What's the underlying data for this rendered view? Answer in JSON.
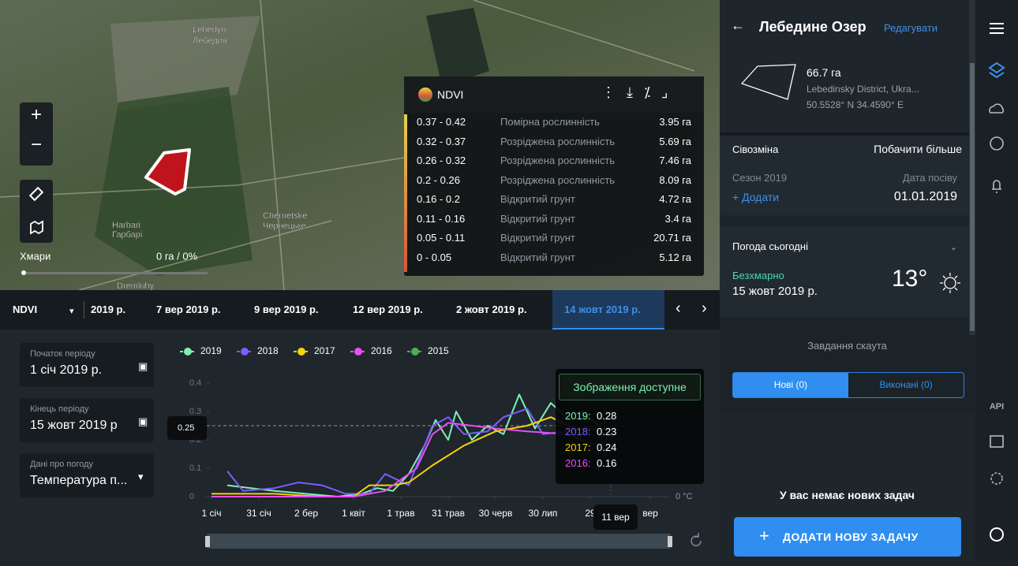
{
  "map": {
    "labels": [
      "Lebedyn",
      "Лебедин",
      "Harbari",
      "Гарбарі",
      "Chernetske",
      "Чернецьке",
      "Dremluhy"
    ],
    "clouds_label": "Хмари",
    "clouds_value": "0 га / 0%"
  },
  "ndvi_legend": {
    "title": "NDVI",
    "rows": [
      {
        "range": "0.37 - 0.42",
        "class": "Помірна рослинність",
        "area": "3.95 га"
      },
      {
        "range": "0.32 - 0.37",
        "class": "Розріджена рослинність",
        "area": "5.69 га"
      },
      {
        "range": "0.26 - 0.32",
        "class": "Розріджена рослинність",
        "area": "7.46 га"
      },
      {
        "range": "0.2 - 0.26",
        "class": "Розріджена рослинність",
        "area": "8.09 га"
      },
      {
        "range": "0.16 - 0.2",
        "class": "Відкритий грунт",
        "area": "4.72 га"
      },
      {
        "range": "0.11 - 0.16",
        "class": "Відкритий грунт",
        "area": "3.4 га"
      },
      {
        "range": "0.05 - 0.11",
        "class": "Відкритий грунт",
        "area": "20.71 га"
      },
      {
        "range": "0 - 0.05",
        "class": "Відкритий грунт",
        "area": "5.12 га"
      }
    ]
  },
  "timeline": {
    "layer": "NDVI",
    "dates": [
      "2019 р.",
      "7 вер 2019 р.",
      "9 вер 2019 р.",
      "12 вер 2019 р.",
      "2 жовт 2019 р.",
      "14 жовт 2019 р."
    ],
    "selected": 5
  },
  "filters": [
    {
      "label": "Початок періоду",
      "value": "1 січ 2019 р."
    },
    {
      "label": "Кінець періоду",
      "value": "15 жовт 2019 р"
    },
    {
      "label": "Дані про погоду",
      "value": "Температура п..."
    }
  ],
  "ndvi_chart": {
    "type": "line",
    "xlim": [
      0,
      290
    ],
    "ylim": [
      0,
      0.4
    ],
    "yticks": [
      0,
      0.1,
      0.2,
      0.3,
      0.4
    ],
    "xticks": [
      {
        "value": 0,
        "label": "1 січ"
      },
      {
        "value": 30,
        "label": "31 січ"
      },
      {
        "value": 60,
        "label": "2 бер"
      },
      {
        "value": 90,
        "label": "1 квіт"
      },
      {
        "value": 120,
        "label": "1 трав"
      },
      {
        "value": 150,
        "label": "31 трав"
      },
      {
        "value": 180,
        "label": "30 черв"
      },
      {
        "value": 210,
        "label": "30 лип"
      },
      {
        "value": 240,
        "label": "29"
      },
      {
        "value": 278,
        "label": "вер"
      }
    ],
    "y2_label": "0 °C",
    "crosshair": 0.25,
    "hover_label": "11 вер",
    "hover_x": 253,
    "series": [
      {
        "name": "2019",
        "color": "#7ff0b4",
        "x": [
          10,
          25,
          40,
          60,
          80,
          95,
          105,
          115,
          125,
          135,
          142,
          150,
          155,
          165,
          175,
          185,
          195,
          205,
          215,
          225,
          235,
          245,
          253
        ],
        "values": [
          0.04,
          0.03,
          0.02,
          0.01,
          0,
          0.01,
          0.03,
          0.02,
          0.08,
          0.18,
          0.27,
          0.2,
          0.3,
          0.2,
          0.25,
          0.22,
          0.36,
          0.24,
          0.33,
          0.28,
          0.3,
          0.25,
          0.28
        ]
      },
      {
        "name": "2018",
        "color": "#7c5cff",
        "x": [
          10,
          20,
          40,
          55,
          70,
          85,
          100,
          110,
          125,
          140,
          150,
          160,
          175,
          185,
          200,
          210,
          225,
          240,
          253
        ],
        "values": [
          0.09,
          0.02,
          0.03,
          0.05,
          0.04,
          0.01,
          0.01,
          0.08,
          0.04,
          0.25,
          0.28,
          0.22,
          0.23,
          0.28,
          0.31,
          0.22,
          0.23,
          0.25,
          0.23
        ]
      },
      {
        "name": "2017",
        "color": "#f5d20a",
        "x": [
          0,
          40,
          70,
          90,
          100,
          115,
          125,
          140,
          160,
          180,
          200,
          215,
          230,
          253
        ],
        "values": [
          0.01,
          0.01,
          0,
          0,
          0.04,
          0.04,
          0.05,
          0.11,
          0.18,
          0.23,
          0.25,
          0.28,
          0.24,
          0.24
        ]
      },
      {
        "name": "2016",
        "color": "#e84ff0",
        "x": [
          0,
          30,
          60,
          90,
          110,
          130,
          140,
          150,
          165,
          180,
          200,
          225,
          253
        ],
        "values": [
          0,
          0,
          0,
          0,
          0.02,
          0.1,
          0.22,
          0.26,
          0.25,
          0.24,
          0.23,
          0.22,
          0.16
        ]
      },
      {
        "name": "2015",
        "color": "#4caf50",
        "x": [],
        "values": []
      }
    ],
    "tooltip": {
      "title": "Зображення доступне",
      "items": [
        {
          "label": "2019:",
          "value": 0.28
        },
        {
          "label": "2018:",
          "value": 0.23
        },
        {
          "label": "2017:",
          "value": 0.24
        },
        {
          "label": "2016:",
          "value": 0.16
        }
      ]
    }
  },
  "field_panel": {
    "title": "Лебедине Озер",
    "edit": "Редагувати",
    "area": "66.7 га",
    "district": "Lebedinsky District, Ukra...",
    "coords": "50.5528° N 34.4590° E",
    "rotation": {
      "title": "Сівозміна",
      "more": "Побачити більше",
      "season": "Сезон 2019",
      "sowing_label": "Дата посіву",
      "add": "+ Додати",
      "sowing_date": "01.01.2019"
    },
    "weather": {
      "title": "Погода сьогодні",
      "condition": "Безхмарно",
      "date": "15 жовт 2019 р.",
      "temp": "13°"
    },
    "scout": {
      "title": "Завдання скаута",
      "tab_new": "Нові (0)",
      "tab_done": "Виконані (0)",
      "empty": "У вас немає нових задач",
      "add": "ДОДАТИ НОВУ ЗАДАЧУ"
    }
  },
  "sidebar": {
    "api": "API"
  }
}
